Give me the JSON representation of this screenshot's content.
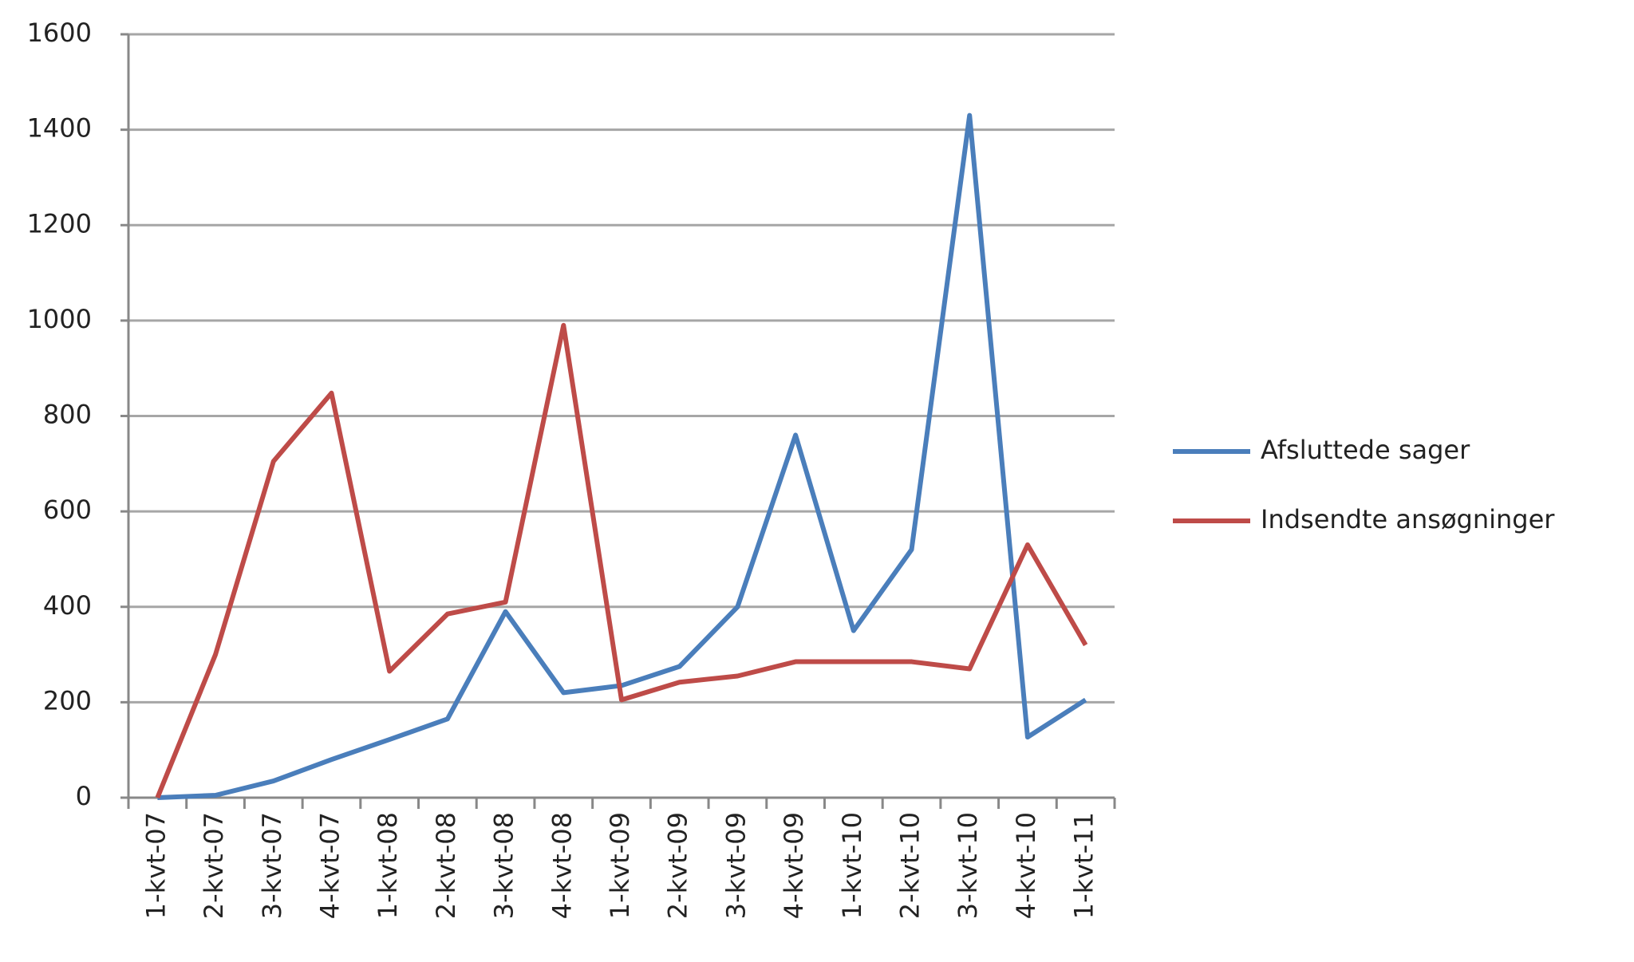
{
  "chart_data": {
    "type": "line",
    "categories": [
      "1-kvt-07",
      "2-kvt-07",
      "3-kvt-07",
      "4-kvt-07",
      "1-kvt-08",
      "2-kvt-08",
      "3-kvt-08",
      "4-kvt-08",
      "1-kvt-09",
      "2-kvt-09",
      "3-kvt-09",
      "4-kvt-09",
      "1-kvt-10",
      "2-kvt-10",
      "3-kvt-10",
      "4-kvt-10",
      "1-kvt-11"
    ],
    "series": [
      {
        "name": "Afsluttede sager",
        "color": "#4a7ebb",
        "values": [
          0,
          5,
          35,
          80,
          122,
          165,
          390,
          220,
          235,
          275,
          400,
          760,
          350,
          520,
          1430,
          127,
          205
        ]
      },
      {
        "name": "Indsendte ansøgninger",
        "color": "#be4b48",
        "values": [
          0,
          300,
          705,
          848,
          265,
          385,
          410,
          990,
          205,
          242,
          255,
          285,
          285,
          285,
          270,
          530,
          320
        ]
      }
    ],
    "ylim": [
      0,
      1600
    ],
    "yticks": [
      0,
      200,
      400,
      600,
      800,
      1000,
      1200,
      1400,
      1600
    ],
    "grid": true,
    "legend": "right"
  }
}
